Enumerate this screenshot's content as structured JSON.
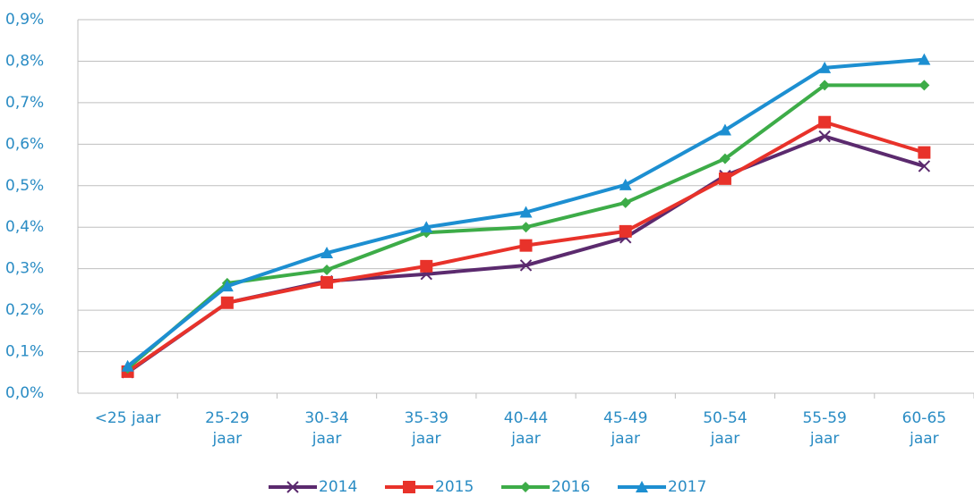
{
  "chart_data": {
    "type": "line",
    "categories": [
      "<25 jaar",
      "25-29\njaar",
      "30-34\njaar",
      "35-39\njaar",
      "40-44\njaar",
      "45-49\njaar",
      "50-54\njaar",
      "55-59\njaar",
      "60-65\njaar"
    ],
    "series": [
      {
        "name": "2014",
        "color": "#5b2a6e",
        "marker": "x",
        "values": [
          0.05,
          0.218,
          0.27,
          0.287,
          0.308,
          0.375,
          0.524,
          0.619,
          0.547
        ]
      },
      {
        "name": "2015",
        "color": "#e8322a",
        "marker": "square",
        "values": [
          0.052,
          0.218,
          0.267,
          0.306,
          0.356,
          0.39,
          0.517,
          0.653,
          0.58
        ]
      },
      {
        "name": "2016",
        "color": "#3dac48",
        "marker": "diamond",
        "values": [
          0.06,
          0.265,
          0.297,
          0.387,
          0.4,
          0.459,
          0.565,
          0.742,
          0.742
        ]
      },
      {
        "name": "2017",
        "color": "#1d8fd1",
        "marker": "triangle",
        "values": [
          0.065,
          0.258,
          0.338,
          0.4,
          0.436,
          0.502,
          0.634,
          0.784,
          0.804
        ]
      }
    ],
    "ylim": [
      0,
      0.9
    ],
    "yticks": [
      {
        "value": 0,
        "label": "0,0%"
      },
      {
        "value": 0.1,
        "label": "0,1%"
      },
      {
        "value": 0.2,
        "label": "0,2%"
      },
      {
        "value": 0.3,
        "label": "0,3%"
      },
      {
        "value": 0.4,
        "label": "0,4%"
      },
      {
        "value": 0.5,
        "label": "0,5%"
      },
      {
        "value": 0.6,
        "label": "0,6%"
      },
      {
        "value": 0.7,
        "label": "0,7%"
      },
      {
        "value": 0.8,
        "label": "0,8%"
      },
      {
        "value": 0.9,
        "label": "0,9%"
      }
    ],
    "grid": true,
    "legend": "bottom"
  }
}
